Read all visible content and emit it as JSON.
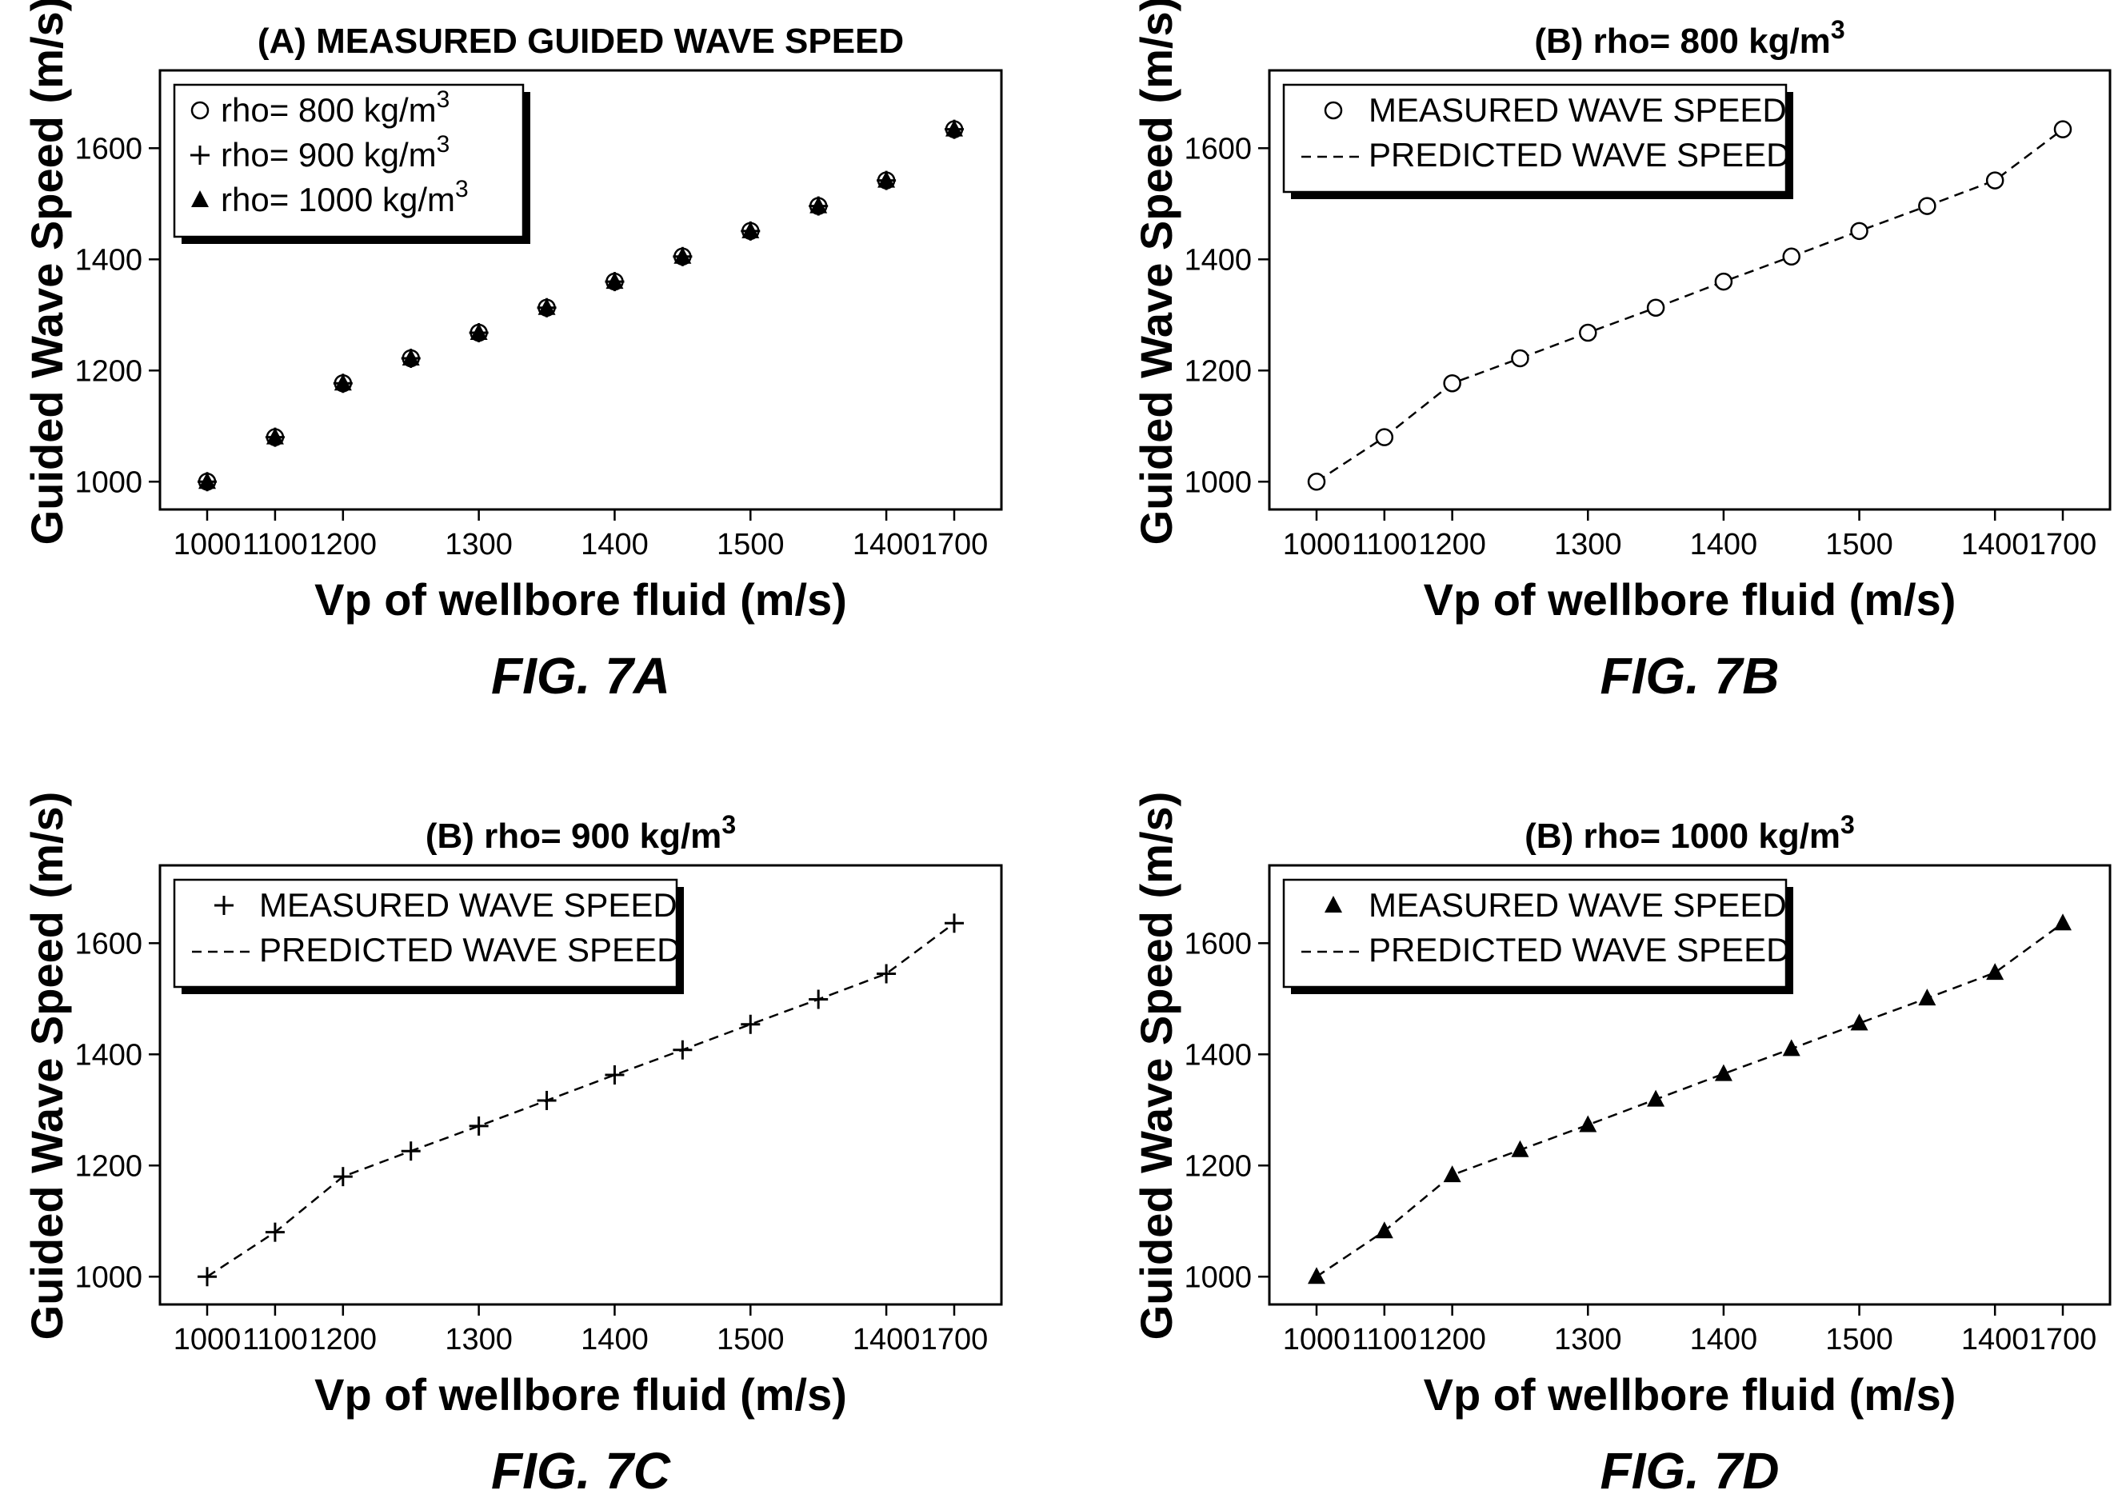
{
  "chart_data": [
    {
      "type": "scatter",
      "panel": "A",
      "title": "(A) MEASURED GUIDED WAVE SPEED",
      "title_superscript": "",
      "caption": "FIG. 7A",
      "xlabel": "Vp of wellbore fluid (m/s)",
      "ylabel": "Guided Wave Speed (m/s)",
      "categories": [
        "1000",
        "1100",
        "1200",
        "1250",
        "1300",
        "1350",
        "1400",
        "1450",
        "1500",
        "1550",
        "1400",
        "1700"
      ],
      "x_tick_labels": [
        "1000",
        "1100",
        "1200",
        "1300",
        "1400",
        "1500",
        "1400",
        "1700"
      ],
      "y_ticks": [
        1000,
        1200,
        1400,
        1600
      ],
      "ylim": [
        950,
        1740
      ],
      "legend_position": "top-left",
      "series": [
        {
          "label": "rho= 800 kg/m",
          "sup": "3",
          "marker": "circle",
          "values": [
            1000,
            1080,
            1177,
            1222,
            1268,
            1313,
            1360,
            1405,
            1451,
            1496,
            1542,
            1634
          ]
        },
        {
          "label": "rho= 900 kg/m",
          "sup": "3",
          "marker": "plus",
          "values": [
            1000,
            1080,
            1177,
            1222,
            1268,
            1313,
            1360,
            1405,
            1451,
            1496,
            1542,
            1634
          ]
        },
        {
          "label": "rho= 1000 kg/m",
          "sup": "3",
          "marker": "triangle",
          "values": [
            1000,
            1080,
            1177,
            1222,
            1268,
            1313,
            1360,
            1405,
            1451,
            1496,
            1542,
            1634
          ]
        }
      ]
    },
    {
      "type": "scatter",
      "panel": "B",
      "title": "(B) rho= 800 kg/m",
      "title_superscript": "3",
      "caption": "FIG. 7B",
      "xlabel": "Vp of wellbore fluid (m/s)",
      "ylabel": "Guided Wave Speed (m/s)",
      "categories": [
        "1000",
        "1100",
        "1200",
        "1250",
        "1300",
        "1350",
        "1400",
        "1450",
        "1500",
        "1550",
        "1400",
        "1700"
      ],
      "x_tick_labels": [
        "1000",
        "1100",
        "1200",
        "1300",
        "1400",
        "1500",
        "1400",
        "1700"
      ],
      "y_ticks": [
        1000,
        1200,
        1400,
        1600
      ],
      "ylim": [
        950,
        1740
      ],
      "legend_position": "top-left",
      "series": [
        {
          "label": "MEASURED WAVE SPEED",
          "sup": "",
          "marker": "circle",
          "values": [
            1000,
            1080,
            1177,
            1222,
            1268,
            1313,
            1360,
            1405,
            1451,
            1496,
            1542,
            1634
          ]
        },
        {
          "label": "PREDICTED WAVE SPEED",
          "sup": "",
          "marker": "dashed-line",
          "values": [
            1000,
            1080,
            1177,
            1222,
            1268,
            1313,
            1360,
            1405,
            1451,
            1496,
            1542,
            1634
          ]
        }
      ]
    },
    {
      "type": "scatter",
      "panel": "C",
      "title": "(B) rho= 900 kg/m",
      "title_superscript": "3",
      "caption": "FIG. 7C",
      "xlabel": "Vp of wellbore fluid (m/s)",
      "ylabel": "Guided Wave Speed (m/s)",
      "categories": [
        "1000",
        "1100",
        "1200",
        "1250",
        "1300",
        "1350",
        "1400",
        "1450",
        "1500",
        "1550",
        "1400",
        "1700"
      ],
      "x_tick_labels": [
        "1000",
        "1100",
        "1200",
        "1300",
        "1400",
        "1500",
        "1400",
        "1700"
      ],
      "y_ticks": [
        1000,
        1200,
        1400,
        1600
      ],
      "ylim": [
        950,
        1740
      ],
      "legend_position": "top-left",
      "series": [
        {
          "label": "MEASURED WAVE SPEED",
          "sup": "",
          "marker": "plus",
          "values": [
            1000,
            1080,
            1180,
            1226,
            1271,
            1317,
            1363,
            1408,
            1454,
            1499,
            1545,
            1636
          ]
        },
        {
          "label": "PREDICTED WAVE SPEED",
          "sup": "",
          "marker": "dashed-line",
          "values": [
            1000,
            1080,
            1180,
            1226,
            1271,
            1317,
            1363,
            1408,
            1454,
            1499,
            1545,
            1636
          ]
        }
      ]
    },
    {
      "type": "scatter",
      "panel": "D",
      "title": "(B) rho= 1000 kg/m",
      "title_superscript": "3",
      "caption": "FIG. 7D",
      "xlabel": "Vp of wellbore fluid (m/s)",
      "ylabel": "Guided Wave Speed (m/s)",
      "categories": [
        "1000",
        "1100",
        "1200",
        "1250",
        "1300",
        "1350",
        "1400",
        "1450",
        "1500",
        "1550",
        "1400",
        "1700"
      ],
      "x_tick_labels": [
        "1000",
        "1100",
        "1200",
        "1300",
        "1400",
        "1500",
        "1400",
        "1700"
      ],
      "y_ticks": [
        1000,
        1200,
        1400,
        1600
      ],
      "ylim": [
        950,
        1740
      ],
      "legend_position": "top-left",
      "series": [
        {
          "label": "MEASURED WAVE SPEED",
          "sup": "",
          "marker": "triangle",
          "values": [
            1000,
            1082,
            1183,
            1228,
            1273,
            1319,
            1365,
            1410,
            1456,
            1501,
            1547,
            1636
          ]
        },
        {
          "label": "PREDICTED WAVE SPEED",
          "sup": "",
          "marker": "dashed-line",
          "values": [
            1000,
            1082,
            1183,
            1228,
            1273,
            1319,
            1365,
            1410,
            1456,
            1501,
            1547,
            1636
          ]
        }
      ]
    }
  ]
}
